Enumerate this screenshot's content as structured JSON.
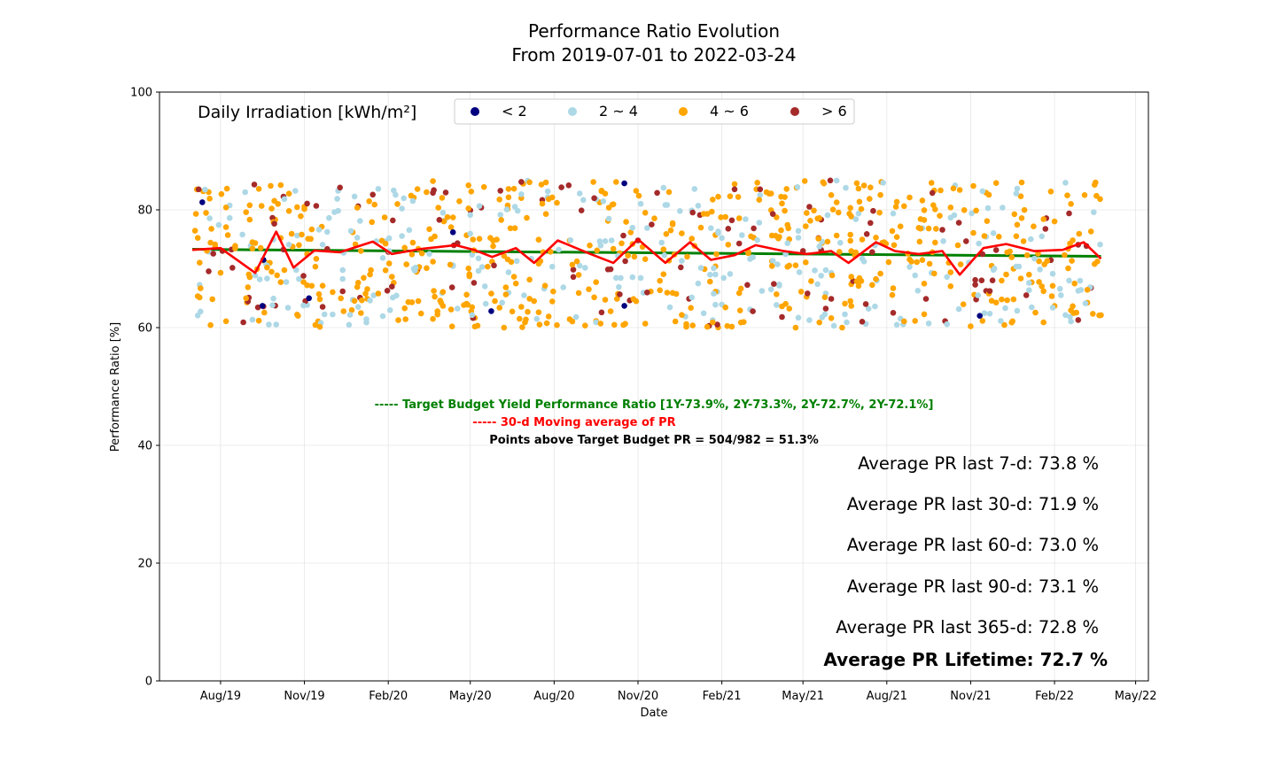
{
  "chart_data": {
    "type": "scatter",
    "title": "Performance Ratio Evolution",
    "subtitle": "From 2019-07-01 to 2022-03-24",
    "xlabel": "Date",
    "ylabel": "Performance Ratio [%]",
    "xlim": [
      "2019-05-26",
      "2022-05-15"
    ],
    "ylim": [
      0,
      100
    ],
    "grid": true,
    "x_ticks": [
      {
        "date": "2019-08-01",
        "label": "Aug/19"
      },
      {
        "date": "2019-11-01",
        "label": "Nov/19"
      },
      {
        "date": "2020-02-01",
        "label": "Feb/20"
      },
      {
        "date": "2020-05-01",
        "label": "May/20"
      },
      {
        "date": "2020-08-01",
        "label": "Aug/20"
      },
      {
        "date": "2020-11-01",
        "label": "Nov/20"
      },
      {
        "date": "2021-02-01",
        "label": "Feb/21"
      },
      {
        "date": "2021-05-01",
        "label": "May/21"
      },
      {
        "date": "2021-08-01",
        "label": "Aug/21"
      },
      {
        "date": "2021-11-01",
        "label": "Nov/21"
      },
      {
        "date": "2022-02-01",
        "label": "Feb/22"
      },
      {
        "date": "2022-05-01",
        "label": "May/22"
      }
    ],
    "y_ticks": [
      0,
      20,
      40,
      60,
      80,
      100
    ],
    "legend": {
      "title": "Daily Irradiation [kWh/m²]",
      "placement": "top",
      "entries": [
        {
          "label": "< 2",
          "color": "#00007f"
        },
        {
          "label": "2 ~ 4",
          "color": "#add8e6"
        },
        {
          "label": "4 ~ 6",
          "color": "#ffa500"
        },
        {
          "label": "> 6",
          "color": "#a52a2a"
        }
      ]
    },
    "scatter_range": {
      "x_start": "2019-07-01",
      "x_end": "2022-03-24",
      "y_min": 60,
      "y_max": 85,
      "count": 982
    },
    "highlight_points": [
      {
        "x": "2019-07-12",
        "y": 81.3,
        "category": "< 2"
      },
      {
        "x": "2019-09-16",
        "y": 63.7,
        "category": "< 2"
      },
      {
        "x": "2019-09-17",
        "y": 71.5,
        "category": "< 2"
      },
      {
        "x": "2019-11-06",
        "y": 65.0,
        "category": "< 2"
      },
      {
        "x": "2020-04-12",
        "y": 76.2,
        "category": "< 2"
      },
      {
        "x": "2020-05-24",
        "y": 62.8,
        "category": "< 2"
      },
      {
        "x": "2020-10-17",
        "y": 84.5,
        "category": "< 2"
      },
      {
        "x": "2020-10-17",
        "y": 63.7,
        "category": "< 2"
      },
      {
        "x": "2021-11-11",
        "y": 62.0,
        "category": "< 2"
      }
    ],
    "series": [
      {
        "name": "Target Budget Yield Performance Ratio [1Y-73.9%, 2Y-73.3%, 2Y-72.7%, 2Y-72.1%]",
        "color": "#008000",
        "x": [
          "2019-07-01",
          "2022-03-24"
        ],
        "y": [
          73.3,
          72.1
        ]
      },
      {
        "name": "30-d Moving average of PR",
        "color": "#ff0000",
        "x": [
          "2019-07-01",
          "2019-08-01",
          "2019-09-08",
          "2019-10-01",
          "2019-10-20",
          "2019-11-12",
          "2019-12-10",
          "2020-01-15",
          "2020-02-05",
          "2020-03-10",
          "2020-04-15",
          "2020-05-05",
          "2020-05-25",
          "2020-06-20",
          "2020-07-10",
          "2020-08-05",
          "2020-09-10",
          "2020-10-05",
          "2020-11-01",
          "2020-12-01",
          "2020-12-28",
          "2021-01-20",
          "2021-02-15",
          "2021-03-10",
          "2021-04-10",
          "2021-05-05",
          "2021-06-01",
          "2021-06-20",
          "2021-07-20",
          "2021-08-10",
          "2021-09-05",
          "2021-10-01",
          "2021-10-20",
          "2021-11-15",
          "2021-12-10",
          "2022-01-10",
          "2022-02-10",
          "2022-03-05",
          "2022-03-24"
        ],
        "y": [
          73.2,
          73.5,
          69.3,
          76.3,
          70.2,
          73.1,
          72.8,
          74.6,
          72.5,
          73.4,
          74.0,
          73.2,
          72.0,
          73.5,
          71.0,
          74.8,
          72.5,
          71.0,
          75.0,
          71.0,
          74.5,
          71.5,
          72.3,
          74.0,
          73.0,
          72.5,
          73.0,
          71.0,
          74.5,
          73.0,
          72.5,
          73.0,
          69.0,
          73.5,
          74.2,
          73.0,
          73.2,
          74.5,
          71.7
        ]
      }
    ],
    "annotations": {
      "target_legend": "----- Target Budget Yield Performance Ratio [1Y-73.9%, 2Y-73.3%, 2Y-72.7%, 2Y-72.1%]",
      "moving_avg_legend": "----- 30-d Moving average of PR",
      "points_above": "Points above Target Budget PR = 504/982 = 51.3%",
      "stats": [
        "Average PR last 7-d: 73.8 %",
        "Average PR last 30-d: 71.9 %",
        "Average PR last 60-d: 73.0 %",
        "Average PR last 90-d: 73.1 %",
        "Average PR last 365-d: 72.8 %"
      ],
      "lifetime": "Average PR Lifetime: 72.7 %"
    }
  }
}
